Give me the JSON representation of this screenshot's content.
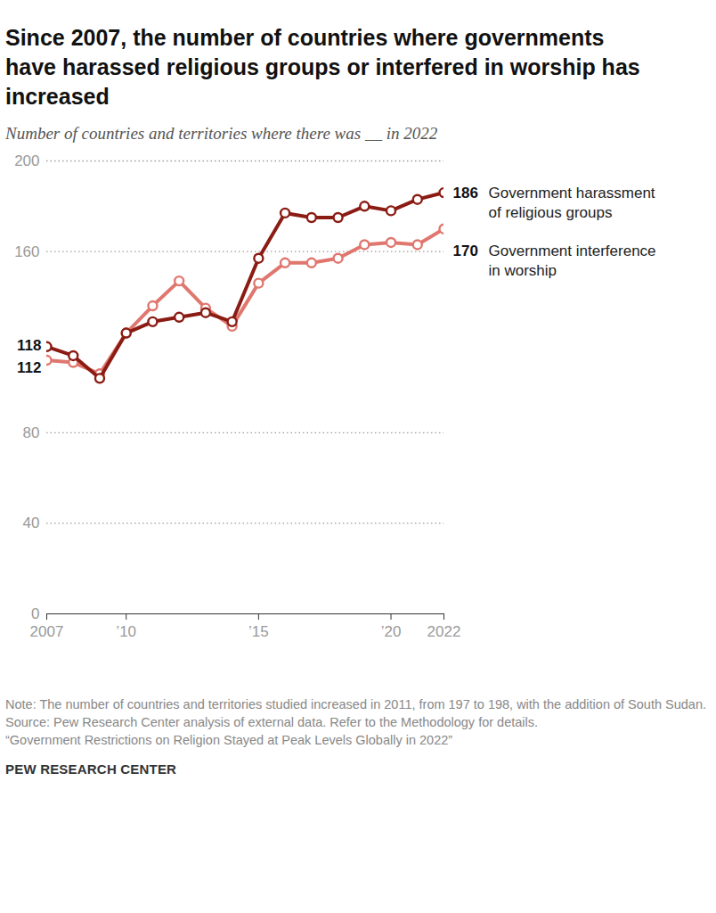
{
  "chart_data": {
    "type": "line",
    "title": "Since 2007, the number of countries where governments have harassed religious groups or interfered in worship has increased",
    "subtitle": "Number of countries and territories where there was __ in 2022",
    "x": [
      2007,
      2008,
      2009,
      2010,
      2011,
      2012,
      2013,
      2014,
      2015,
      2016,
      2017,
      2018,
      2019,
      2020,
      2021,
      2022
    ],
    "series": [
      {
        "name": "Government harassment of religious groups",
        "color": "#8b1c14",
        "marker": "circle",
        "values": [
          118,
          114,
          104,
          124,
          129,
          131,
          133,
          129,
          157,
          177,
          175,
          175,
          180,
          178,
          183,
          186
        ]
      },
      {
        "name": "Government interference in worship",
        "color": "#e0776f",
        "marker": "circle",
        "values": [
          112,
          111,
          106,
          124,
          136,
          147,
          135,
          127,
          146,
          155,
          155,
          157,
          163,
          164,
          163,
          170
        ]
      }
    ],
    "xlim": [
      2007,
      2022
    ],
    "xticks": [
      2007,
      {
        "value": 2010,
        "label": "’10"
      },
      {
        "value": 2015,
        "label": "’15"
      },
      {
        "value": 2020,
        "label": "’20"
      },
      2022
    ],
    "ylim": [
      0,
      200
    ],
    "yticks": [
      0,
      40,
      80,
      160,
      200
    ],
    "grid": true,
    "note": "Note: The number of countries and territories studied increased in 2011, from 197 to 198, with the addition of South Sudan.",
    "source": "Source: Pew Research Center analysis of external data. Refer to the Methodology for details.",
    "caption": "“Government Restrictions on Religion Stayed at Peak Levels Globally in 2022”",
    "credit": "PEW RESEARCH CENTER"
  }
}
